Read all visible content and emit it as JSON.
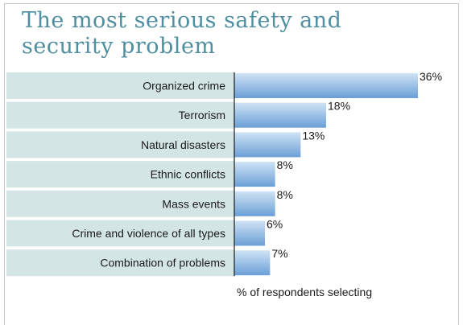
{
  "chart_data": {
    "type": "bar",
    "orientation": "horizontal",
    "title": "The most serious safety and security problem",
    "xlabel": "% of respondents selecting",
    "ylabel": "",
    "categories": [
      "Organized crime",
      "Terrorism",
      "Natural disasters",
      "Ethnic conflicts",
      "Mass events",
      "Crime and violence of all types",
      "Combination of problems"
    ],
    "values": [
      36,
      18,
      13,
      8,
      8,
      6,
      7
    ],
    "value_labels": [
      "36%",
      "18%",
      "13%",
      "8%",
      "8%",
      "6%",
      "7%"
    ],
    "value_suffix": "%",
    "xlim": [
      0,
      36
    ],
    "grid": false,
    "legend": "none",
    "colors": {
      "title": "#4f8fa0",
      "row_band": "#d3e5e5",
      "bar_light": "#cfe3f5",
      "bar_dark": "#6b9fd6",
      "axis": "#1a1a1a"
    }
  }
}
